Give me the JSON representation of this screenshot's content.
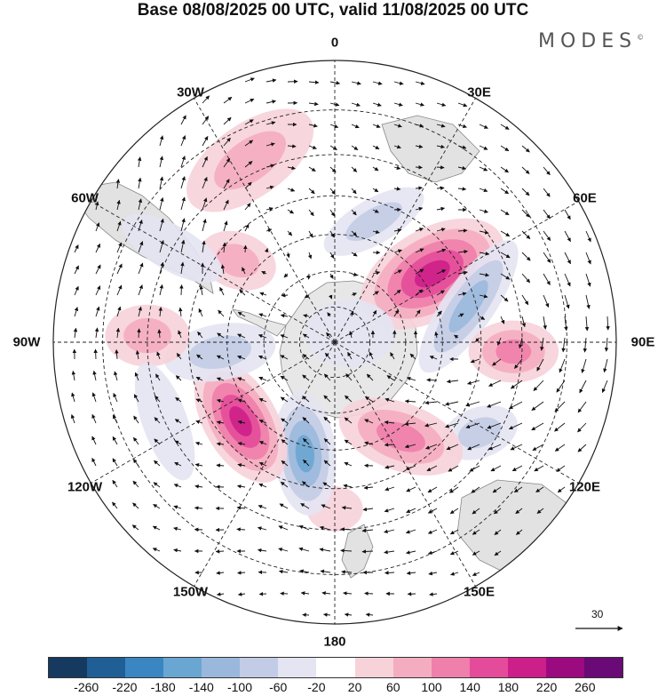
{
  "title": "Base 08/08/2025 00 UTC, valid 11/08/2025 00 UTC",
  "logo": {
    "text": "MODES",
    "mark": "©"
  },
  "projection": "south-polar-stereographic",
  "longitude_labels": [
    {
      "id": "0",
      "text": "0",
      "angle": 0
    },
    {
      "id": "30e",
      "text": "30E",
      "angle": 30
    },
    {
      "id": "60e",
      "text": "60E",
      "angle": 60
    },
    {
      "id": "90e",
      "text": "90E",
      "angle": 90
    },
    {
      "id": "120e",
      "text": "120E",
      "angle": 120
    },
    {
      "id": "150e",
      "text": "150E",
      "angle": 150
    },
    {
      "id": "180",
      "text": "180",
      "angle": 180
    },
    {
      "id": "150w",
      "text": "150W",
      "angle": 210
    },
    {
      "id": "120w",
      "text": "120W",
      "angle": 240
    },
    {
      "id": "90w",
      "text": "90W",
      "angle": 270
    },
    {
      "id": "60w",
      "text": "60W",
      "angle": 300
    },
    {
      "id": "30w",
      "text": "30W",
      "angle": 330
    }
  ],
  "latitude_circles_deg": [
    -80,
    -70,
    -60,
    -50,
    -40,
    -30
  ],
  "anomalies": [
    {
      "id": "pos-0-north",
      "value": 80,
      "lon": -25,
      "lat": -37,
      "ra": 0.26,
      "rb": 0.13,
      "rot": -35
    },
    {
      "id": "neg-0",
      "value": -100,
      "lon": 18,
      "lat": -55,
      "ra": 0.2,
      "rb": 0.08,
      "rot": -30
    },
    {
      "id": "pos-45e",
      "value": 220,
      "lon": 55,
      "lat": -57,
      "ra": 0.28,
      "rb": 0.16,
      "rot": -30
    },
    {
      "id": "neg-75e",
      "value": -120,
      "lon": 75,
      "lat": -52,
      "ra": 0.28,
      "rb": 0.09,
      "rot": -55
    },
    {
      "id": "pos-90e",
      "value": 120,
      "lon": 93,
      "lat": -42,
      "ra": 0.16,
      "rb": 0.11,
      "rot": 0
    },
    {
      "id": "neg-120e",
      "value": -80,
      "lon": 122,
      "lat": -44,
      "ra": 0.14,
      "rb": 0.09,
      "rot": -20
    },
    {
      "id": "pos-140e",
      "value": 120,
      "lon": 145,
      "lat": -58,
      "ra": 0.23,
      "rb": 0.12,
      "rot": 20
    },
    {
      "id": "pos-180",
      "value": 60,
      "lon": 180,
      "lat": -45,
      "ra": 0.1,
      "rb": 0.08,
      "rot": 0
    },
    {
      "id": "neg-160w",
      "value": -180,
      "lon": -165,
      "lat": -58,
      "ra": 0.22,
      "rb": 0.11,
      "rot": 85
    },
    {
      "id": "pos-130w",
      "value": 220,
      "lon": -130,
      "lat": -56,
      "ra": 0.24,
      "rb": 0.13,
      "rot": 60
    },
    {
      "id": "neg-95w",
      "value": -100,
      "lon": -95,
      "lat": -58,
      "ra": 0.2,
      "rb": 0.1,
      "rot": -10
    },
    {
      "id": "pos-90w",
      "value": 80,
      "lon": -88,
      "lat": -40,
      "ra": 0.15,
      "rb": 0.11,
      "rot": 0
    },
    {
      "id": "pos-50w",
      "value": 80,
      "lon": -50,
      "lat": -55,
      "ra": 0.14,
      "rb": 0.1,
      "rot": 20
    },
    {
      "id": "neg-60w",
      "value": -40,
      "lon": -60,
      "lat": -40,
      "ra": 0.2,
      "rb": 0.08,
      "rot": 30
    },
    {
      "id": "neg-120w-edge",
      "value": -40,
      "lon": -115,
      "lat": -40,
      "ra": 0.22,
      "rb": 0.08,
      "rot": 70
    },
    {
      "id": "neg-pole",
      "value": -40,
      "lon": 60,
      "lat": -85,
      "ra": 0.16,
      "rb": 0.12,
      "rot": 0
    }
  ],
  "wind_reference": {
    "label": "30"
  },
  "colorbar": {
    "colors": [
      "#163a5f",
      "#1f5f96",
      "#3a86c2",
      "#6aa6d2",
      "#9ab8dc",
      "#c3cce6",
      "#e4e4f2",
      "#ffffff",
      "#f7d2d9",
      "#f4adc0",
      "#ef7fab",
      "#e44b9a",
      "#cd1f8a",
      "#9c0a7f",
      "#6a0a76"
    ],
    "labels": [
      "-260",
      "-220",
      "-180",
      "-140",
      "-100",
      "-60",
      "-20",
      "20",
      "60",
      "100",
      "140",
      "180",
      "220",
      "260"
    ],
    "levels": [
      -300,
      -260,
      -220,
      -180,
      -140,
      -100,
      -60,
      -20,
      20,
      60,
      100,
      140,
      180,
      220,
      260,
      300
    ]
  }
}
